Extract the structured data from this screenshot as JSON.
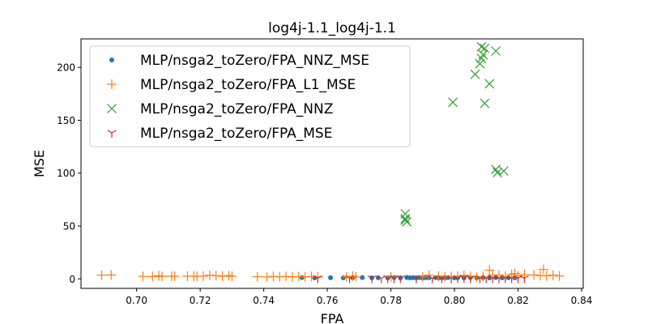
{
  "chart_data": {
    "type": "scatter",
    "title": "log4j-1.1_log4j-1.1",
    "xlabel": "FPA",
    "ylabel": "MSE",
    "xlim": [
      0.6825,
      0.8405
    ],
    "ylim": [
      -9,
      227
    ],
    "xticks": [
      "0.70",
      "0.72",
      "0.74",
      "0.76",
      "0.78",
      "0.80",
      "0.82",
      "0.84"
    ],
    "yticks": [
      "0",
      "50",
      "100",
      "150",
      "200"
    ],
    "grid": false,
    "legend_position": "top-left",
    "series": [
      {
        "name": "MLP/nsga2_toZero/FPA_NNZ_MSE",
        "marker": "dot",
        "color": "#1f77b4",
        "points": [
          [
            0.752,
            1.2
          ],
          [
            0.756,
            1.0
          ],
          [
            0.761,
            1.1
          ],
          [
            0.765,
            1.0
          ],
          [
            0.768,
            1.1
          ],
          [
            0.771,
            1.2
          ],
          [
            0.774,
            1.0
          ],
          [
            0.776,
            1.1
          ],
          [
            0.779,
            1.0
          ],
          [
            0.781,
            1.2
          ],
          [
            0.783,
            1.0
          ],
          [
            0.785,
            1.3
          ],
          [
            0.786,
            1.0
          ],
          [
            0.787,
            1.1
          ],
          [
            0.788,
            1.0
          ],
          [
            0.789,
            1.2
          ],
          [
            0.79,
            1.0
          ],
          [
            0.791,
            1.1
          ],
          [
            0.792,
            1.0
          ],
          [
            0.794,
            1.2
          ],
          [
            0.795,
            1.0
          ],
          [
            0.796,
            1.1
          ],
          [
            0.797,
            1.0
          ],
          [
            0.798,
            1.2
          ],
          [
            0.8,
            1.0
          ],
          [
            0.801,
            1.1
          ],
          [
            0.803,
            1.0
          ],
          [
            0.805,
            1.2
          ],
          [
            0.807,
            1.0
          ],
          [
            0.809,
            1.1
          ],
          [
            0.811,
            1.0
          ],
          [
            0.813,
            1.2
          ],
          [
            0.815,
            1.0
          ],
          [
            0.817,
            1.1
          ],
          [
            0.819,
            1.0
          ]
        ]
      },
      {
        "name": "MLP/nsga2_toZero/FPA_L1_MSE",
        "marker": "plus",
        "color": "#ff7f0e",
        "points": [
          [
            0.689,
            3.5
          ],
          [
            0.692,
            3.6
          ],
          [
            0.702,
            2.4
          ],
          [
            0.705,
            2.2
          ],
          [
            0.707,
            2.9
          ],
          [
            0.708,
            2.3
          ],
          [
            0.711,
            2.5
          ],
          [
            0.712,
            2.4
          ],
          [
            0.716,
            2.5
          ],
          [
            0.718,
            2.5
          ],
          [
            0.719,
            2.4
          ],
          [
            0.721,
            2.6
          ],
          [
            0.723,
            3.4
          ],
          [
            0.725,
            3.0
          ],
          [
            0.727,
            2.5
          ],
          [
            0.729,
            3.1
          ],
          [
            0.73,
            2.4
          ],
          [
            0.738,
            2.0
          ],
          [
            0.741,
            1.8
          ],
          [
            0.743,
            2.3
          ],
          [
            0.745,
            1.9
          ],
          [
            0.747,
            2.3
          ],
          [
            0.749,
            1.9
          ],
          [
            0.751,
            2.1
          ],
          [
            0.753,
            1.8
          ],
          [
            0.755,
            2.3
          ],
          [
            0.757,
            1.9
          ],
          [
            0.766,
            1.9
          ],
          [
            0.768,
            2.6
          ],
          [
            0.769,
            1.8
          ],
          [
            0.78,
            1.7
          ],
          [
            0.79,
            1.8
          ],
          [
            0.792,
            3.5
          ],
          [
            0.795,
            2.6
          ],
          [
            0.797,
            2.1
          ],
          [
            0.799,
            2.3
          ],
          [
            0.801,
            2.4
          ],
          [
            0.803,
            3.3
          ],
          [
            0.805,
            2.3
          ],
          [
            0.807,
            1.6
          ],
          [
            0.809,
            2.2
          ],
          [
            0.811,
            8.2
          ],
          [
            0.812,
            3.5
          ],
          [
            0.814,
            3.6
          ],
          [
            0.816,
            2.4
          ],
          [
            0.818,
            4.2
          ],
          [
            0.819,
            5.0
          ],
          [
            0.82,
            2.8
          ],
          [
            0.822,
            4.0
          ],
          [
            0.825,
            3.7
          ],
          [
            0.827,
            3.1
          ],
          [
            0.828,
            8.9
          ],
          [
            0.829,
            2.8
          ],
          [
            0.831,
            3.5
          ],
          [
            0.833,
            2.7
          ]
        ]
      },
      {
        "name": "MLP/nsga2_toZero/FPA_NNZ",
        "marker": "x",
        "color": "#2ca02c",
        "points": [
          [
            0.7845,
            61.5
          ],
          [
            0.7845,
            55.5
          ],
          [
            0.7845,
            57.0
          ],
          [
            0.785,
            54.0
          ],
          [
            0.7995,
            167.0
          ],
          [
            0.8065,
            193.5
          ],
          [
            0.808,
            203.5
          ],
          [
            0.8085,
            219.5
          ],
          [
            0.809,
            212.0
          ],
          [
            0.8095,
            218.0
          ],
          [
            0.8085,
            208.5
          ],
          [
            0.8095,
            166.0
          ],
          [
            0.811,
            184.5
          ],
          [
            0.813,
            215.5
          ],
          [
            0.813,
            103.5
          ],
          [
            0.8135,
            100.5
          ],
          [
            0.8155,
            102.0
          ]
        ]
      },
      {
        "name": "MLP/nsga2_toZero/FPA_MSE",
        "marker": "tri_down",
        "color": "#d62728",
        "points": [
          [
            0.757,
            0.6
          ],
          [
            0.767,
            0.6
          ],
          [
            0.774,
            0.7
          ],
          [
            0.777,
            0.5
          ],
          [
            0.779,
            0.6
          ],
          [
            0.781,
            0.6
          ],
          [
            0.783,
            0.7
          ],
          [
            0.788,
            0.5
          ],
          [
            0.793,
            0.6
          ],
          [
            0.796,
            0.6
          ],
          [
            0.799,
            0.5
          ],
          [
            0.801,
            0.6
          ],
          [
            0.803,
            0.7
          ],
          [
            0.805,
            0.6
          ],
          [
            0.808,
            0.5
          ],
          [
            0.81,
            0.6
          ],
          [
            0.812,
            0.6
          ],
          [
            0.814,
            0.5
          ],
          [
            0.816,
            0.7
          ],
          [
            0.818,
            0.6
          ],
          [
            0.82,
            0.5
          ],
          [
            0.822,
            0.6
          ]
        ]
      }
    ]
  }
}
